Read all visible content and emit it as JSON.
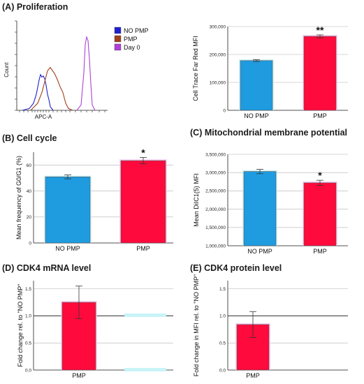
{
  "panels": {
    "A": "(A) Proliferation",
    "B": "(B) Cell cycle",
    "C": "(C) Mitochondrial membrane potential",
    "D": "(D) CDK4 mRNA level",
    "E": "(E) CDK4 protein level"
  },
  "colors": {
    "no_pmp": "#1f9be0",
    "pmp": "#ff0a3c",
    "hist_no_pmp": "#2020d0",
    "hist_pmp": "#a0401c",
    "hist_day0": "#b040d8",
    "axis": "#222222",
    "grid": "#b0b0b0"
  },
  "chart_data": [
    {
      "id": "A-hist",
      "type": "line",
      "xlabel": "APC-A",
      "ylabel": "Count",
      "legend_position": "right",
      "series": [
        {
          "name": "NO PMP",
          "peak": 0.4
        },
        {
          "name": "PMP",
          "peak": 0.48
        },
        {
          "name": "Day 0",
          "peak": 0.82
        }
      ]
    },
    {
      "id": "A-bar",
      "type": "bar",
      "categories": [
        "NO PMP",
        "PMP"
      ],
      "values": [
        178000,
        265000
      ],
      "errors": [
        3000,
        5000
      ],
      "ylabel": "Cell Trace Far Red MFI",
      "ylim": [
        0,
        300000
      ],
      "yticks": [
        "0",
        "100,000",
        "200,000",
        "300,000"
      ],
      "annotations": [
        "",
        "**"
      ],
      "grid": true
    },
    {
      "id": "B",
      "type": "bar",
      "categories": [
        "NO PMP",
        "PMP"
      ],
      "values": [
        51,
        63.5
      ],
      "errors": [
        1.5,
        2.5
      ],
      "ylabel": "Mean frequency of G0/G1 (%)",
      "ylim": [
        0,
        70
      ],
      "yticks": [
        "0",
        "20",
        "40",
        "60"
      ],
      "annotations": [
        "",
        "*"
      ],
      "grid": true
    },
    {
      "id": "C",
      "type": "bar",
      "categories": [
        "NO PMP",
        "PMP"
      ],
      "values": [
        3030000,
        2720000
      ],
      "errors": [
        60000,
        70000
      ],
      "ylabel": "Mean DiIC1(5) MFI",
      "ylim": [
        1000000,
        3500000
      ],
      "yticks": [
        "1,000,000",
        "1,500,000",
        "2,000,000",
        "2,500,000",
        "3,000,000",
        "3,500,000"
      ],
      "annotations": [
        "",
        "*"
      ],
      "grid": true
    },
    {
      "id": "D",
      "type": "bar",
      "categories": [
        "PMP"
      ],
      "values": [
        1.25
      ],
      "errors": [
        0.3
      ],
      "ylabel": "Fold change rel. to \"NO PMP\"",
      "ylim": [
        0,
        1.65
      ],
      "yticks": [
        "0.0",
        "0.5",
        "1.0",
        "1.5"
      ],
      "reference_line": 1.0,
      "grid": true
    },
    {
      "id": "E",
      "type": "bar",
      "categories": [
        "PMP"
      ],
      "values": [
        0.84
      ],
      "errors": [
        0.24
      ],
      "ylabel": "Fold change in MFI rel. to \"NO PMP\"",
      "ylim": [
        0,
        1.65
      ],
      "yticks": [
        "0.0",
        "0.5",
        "1.0",
        "1.5"
      ],
      "reference_line": 1.0,
      "grid": true
    }
  ]
}
